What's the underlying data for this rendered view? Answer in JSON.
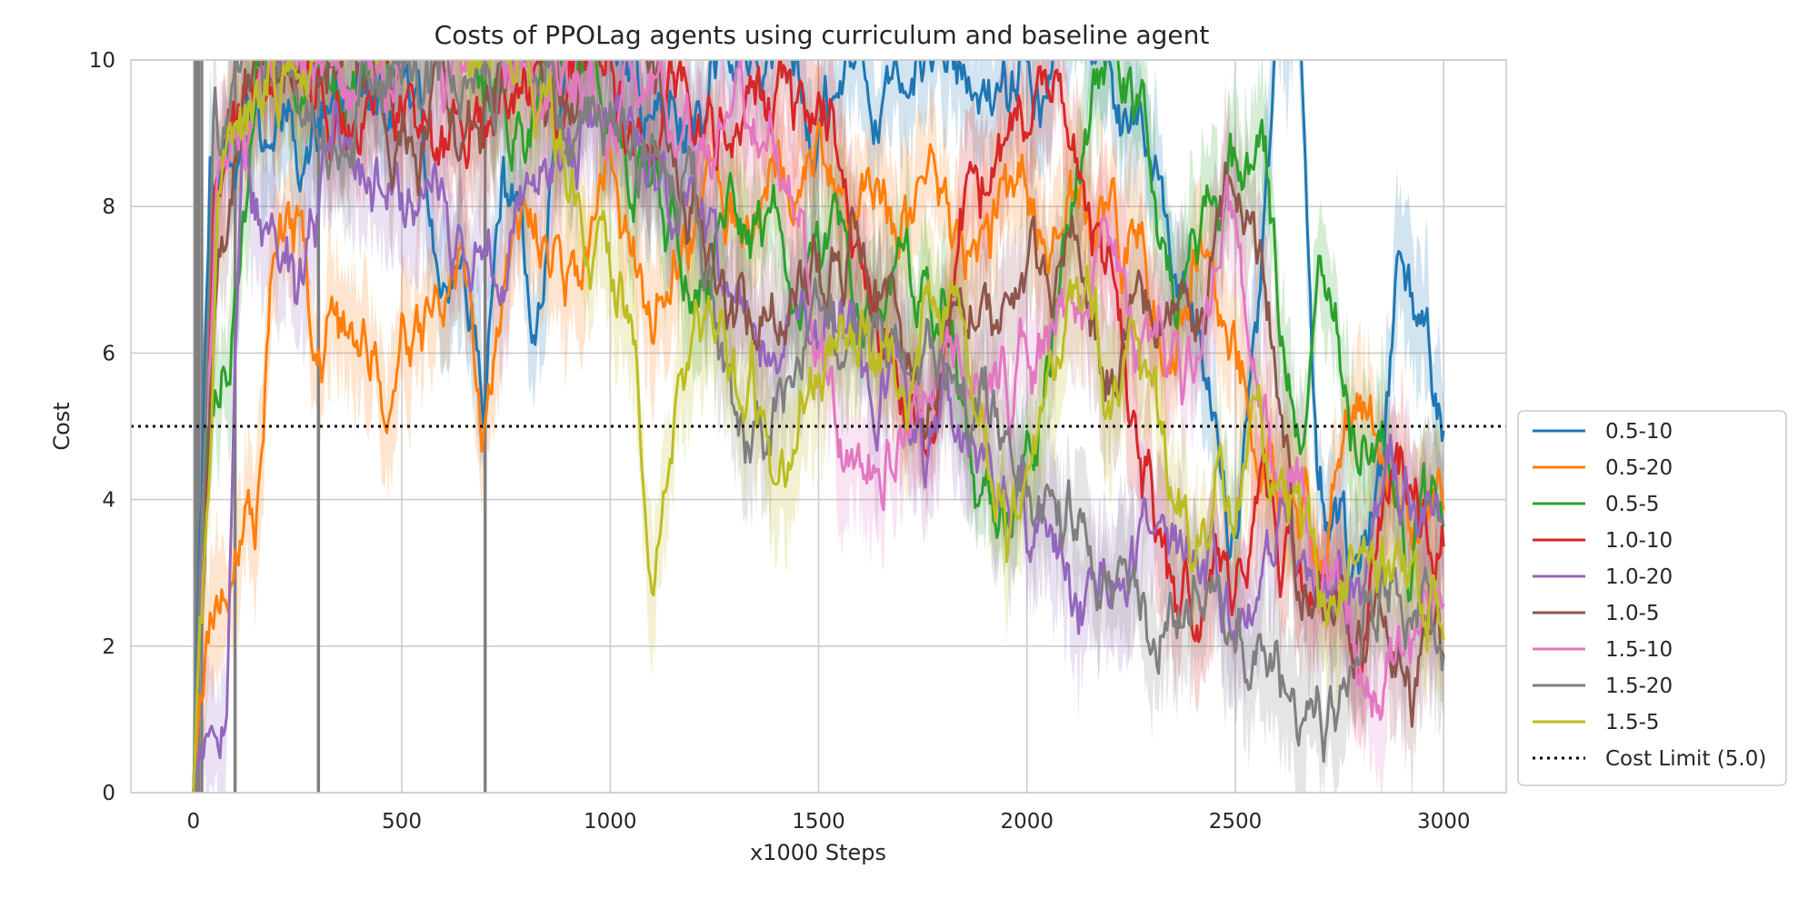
{
  "chart_data": {
    "type": "line",
    "title": "Costs of PPOLag agents using curriculum and baseline agent",
    "xlabel": "x1000 Steps",
    "ylabel": "Cost",
    "xlim": [
      -150,
      3150
    ],
    "ylim": [
      0,
      10
    ],
    "xticks": [
      0,
      500,
      1000,
      1500,
      2000,
      2500,
      3000
    ],
    "yticks": [
      0,
      2,
      4,
      6,
      8,
      10
    ],
    "grid": true,
    "legend_position": "lower-right, outside plot",
    "reference_line": {
      "name": "Cost Limit (5.0)",
      "y": 5.0,
      "style": "dotted",
      "color": "#000000"
    },
    "series": [
      {
        "name": "0.5-10",
        "color": "#1f77b4",
        "seed": 11,
        "keypoints": [
          [
            0,
            0
          ],
          [
            40,
            9.0
          ],
          [
            100,
            9.5
          ],
          [
            300,
            9.6
          ],
          [
            500,
            9.0
          ],
          [
            650,
            7.0
          ],
          [
            700,
            5.3
          ],
          [
            740,
            7.5
          ],
          [
            820,
            4.9
          ],
          [
            900,
            9.5
          ],
          [
            1300,
            9.8
          ],
          [
            1600,
            9.7
          ],
          [
            1900,
            9.8
          ],
          [
            2200,
            9.5
          ],
          [
            2400,
            6.0
          ],
          [
            2500,
            3.0
          ],
          [
            2600,
            9.5
          ],
          [
            2650,
            10.5
          ],
          [
            2700,
            3.5
          ],
          [
            2800,
            2.8
          ],
          [
            2890,
            6.9
          ],
          [
            2950,
            5.5
          ],
          [
            3000,
            4.5
          ]
        ]
      },
      {
        "name": "0.5-20",
        "color": "#ff7f0e",
        "seed": 23,
        "keypoints": [
          [
            0,
            0
          ],
          [
            30,
            2.5
          ],
          [
            80,
            3.8
          ],
          [
            150,
            4.2
          ],
          [
            200,
            8.0
          ],
          [
            300,
            7.0
          ],
          [
            400,
            6.5
          ],
          [
            470,
            5.7
          ],
          [
            530,
            7.0
          ],
          [
            600,
            7.2
          ],
          [
            700,
            5.2
          ],
          [
            760,
            7.2
          ],
          [
            900,
            7.2
          ],
          [
            1000,
            8.5
          ],
          [
            1100,
            6.0
          ],
          [
            1300,
            8.0
          ],
          [
            1500,
            8.5
          ],
          [
            1700,
            8.0
          ],
          [
            2000,
            8.5
          ],
          [
            2300,
            7.0
          ],
          [
            2500,
            6.0
          ],
          [
            2700,
            3.0
          ],
          [
            2800,
            5.0
          ],
          [
            2900,
            3.0
          ],
          [
            3000,
            3.5
          ]
        ]
      },
      {
        "name": "0.5-5",
        "color": "#2ca02c",
        "seed": 37,
        "keypoints": [
          [
            0,
            0
          ],
          [
            30,
            5.0
          ],
          [
            80,
            5.8
          ],
          [
            150,
            9.5
          ],
          [
            300,
            9.8
          ],
          [
            700,
            9.8
          ],
          [
            1000,
            9.5
          ],
          [
            1200,
            7.0
          ],
          [
            1500,
            8.0
          ],
          [
            1800,
            6.5
          ],
          [
            1950,
            3.8
          ],
          [
            2050,
            6.0
          ],
          [
            2200,
            10.0
          ],
          [
            2350,
            6.5
          ],
          [
            2550,
            8.4
          ],
          [
            2650,
            5.0
          ],
          [
            2700,
            7.0
          ],
          [
            2800,
            4.5
          ],
          [
            2900,
            4.0
          ],
          [
            3000,
            4.4
          ]
        ]
      },
      {
        "name": "1.0-10",
        "color": "#d62728",
        "seed": 41,
        "keypoints": [
          [
            0,
            0
          ],
          [
            50,
            8.0
          ],
          [
            120,
            9.5
          ],
          [
            300,
            9.6
          ],
          [
            600,
            9.3
          ],
          [
            900,
            9.5
          ],
          [
            1200,
            9.0
          ],
          [
            1500,
            9.5
          ],
          [
            1760,
            4.6
          ],
          [
            1850,
            8.0
          ],
          [
            2000,
            9.5
          ],
          [
            2200,
            7.0
          ],
          [
            2350,
            2.8
          ],
          [
            2500,
            3.0
          ],
          [
            2600,
            3.5
          ],
          [
            2750,
            3.0
          ],
          [
            2850,
            4.0
          ],
          [
            3000,
            4.2
          ]
        ]
      },
      {
        "name": "1.0-20",
        "color": "#9467bd",
        "seed": 53,
        "keypoints": [
          [
            0,
            0
          ],
          [
            30,
            1.2
          ],
          [
            80,
            2.5
          ],
          [
            120,
            9.0
          ],
          [
            200,
            7.5
          ],
          [
            260,
            6.6
          ],
          [
            350,
            9.5
          ],
          [
            500,
            8.5
          ],
          [
            700,
            8.0
          ],
          [
            850,
            9.0
          ],
          [
            1000,
            9.5
          ],
          [
            1200,
            7.5
          ],
          [
            1400,
            6.5
          ],
          [
            1700,
            5.5
          ],
          [
            1900,
            4.5
          ],
          [
            2100,
            3.0
          ],
          [
            2300,
            3.3
          ],
          [
            2500,
            2.5
          ],
          [
            2700,
            3.0
          ],
          [
            2900,
            4.3
          ],
          [
            3000,
            4.0
          ]
        ]
      },
      {
        "name": "1.0-5",
        "color": "#8c564b",
        "seed": 67,
        "keypoints": [
          [
            0,
            0
          ],
          [
            60,
            9.0
          ],
          [
            200,
            9.5
          ],
          [
            500,
            9.7
          ],
          [
            900,
            9.8
          ],
          [
            1200,
            9.5
          ],
          [
            1300,
            7.0
          ],
          [
            1450,
            8.0
          ],
          [
            1600,
            7.5
          ],
          [
            1800,
            6.5
          ],
          [
            2000,
            7.0
          ],
          [
            2200,
            6.0
          ],
          [
            2400,
            7.0
          ],
          [
            2500,
            8.2
          ],
          [
            2560,
            7.8
          ],
          [
            2650,
            3.0
          ],
          [
            2800,
            2.5
          ],
          [
            2950,
            1.8
          ],
          [
            3000,
            1.6
          ]
        ]
      },
      {
        "name": "1.5-10",
        "color": "#e377c2",
        "seed": 71,
        "keypoints": [
          [
            0,
            0
          ],
          [
            60,
            9.0
          ],
          [
            200,
            9.6
          ],
          [
            700,
            9.7
          ],
          [
            1100,
            9.6
          ],
          [
            1400,
            8.0
          ],
          [
            1500,
            5.0
          ],
          [
            1650,
            4.8
          ],
          [
            1800,
            7.0
          ],
          [
            2000,
            6.5
          ],
          [
            2200,
            6.0
          ],
          [
            2400,
            5.5
          ],
          [
            2500,
            7.5
          ],
          [
            2550,
            6.0
          ],
          [
            2700,
            2.5
          ],
          [
            2800,
            1.8
          ],
          [
            2950,
            2.0
          ],
          [
            3000,
            2.0
          ]
        ]
      },
      {
        "name": "1.5-20",
        "color": "#7f7f7f",
        "seed": 83,
        "keypoints": [
          [
            0,
            0
          ],
          [
            50,
            9.5
          ],
          [
            200,
            9.8
          ],
          [
            800,
            9.8
          ],
          [
            1200,
            8.0
          ],
          [
            1300,
            5.2
          ],
          [
            1400,
            5.0
          ],
          [
            1500,
            6.0
          ],
          [
            1700,
            7.0
          ],
          [
            1900,
            5.5
          ],
          [
            2100,
            4.8
          ],
          [
            2200,
            3.5
          ],
          [
            2300,
            2.3
          ],
          [
            2400,
            3.0
          ],
          [
            2500,
            2.0
          ],
          [
            2600,
            2.2
          ],
          [
            2650,
            1.2
          ],
          [
            2750,
            2.0
          ],
          [
            2900,
            3.0
          ],
          [
            3000,
            3.0
          ]
        ]
      },
      {
        "name": "1.5-5",
        "color": "#bcbd22",
        "seed": 97,
        "keypoints": [
          [
            0,
            0
          ],
          [
            60,
            9.0
          ],
          [
            200,
            9.7
          ],
          [
            800,
            9.7
          ],
          [
            1050,
            6.0
          ],
          [
            1100,
            4.0
          ],
          [
            1200,
            6.0
          ],
          [
            1400,
            5.0
          ],
          [
            1550,
            7.0
          ],
          [
            1700,
            5.5
          ],
          [
            1850,
            6.0
          ],
          [
            1960,
            2.6
          ],
          [
            2100,
            6.0
          ],
          [
            2250,
            5.0
          ],
          [
            2400,
            4.0
          ],
          [
            2600,
            4.5
          ],
          [
            2750,
            3.2
          ],
          [
            2900,
            3.0
          ],
          [
            3000,
            3.1
          ]
        ]
      }
    ],
    "baseline_vertical_lines": {
      "color": "#7f7f7f",
      "x": [
        5,
        12,
        20,
        100,
        300,
        700
      ]
    }
  }
}
